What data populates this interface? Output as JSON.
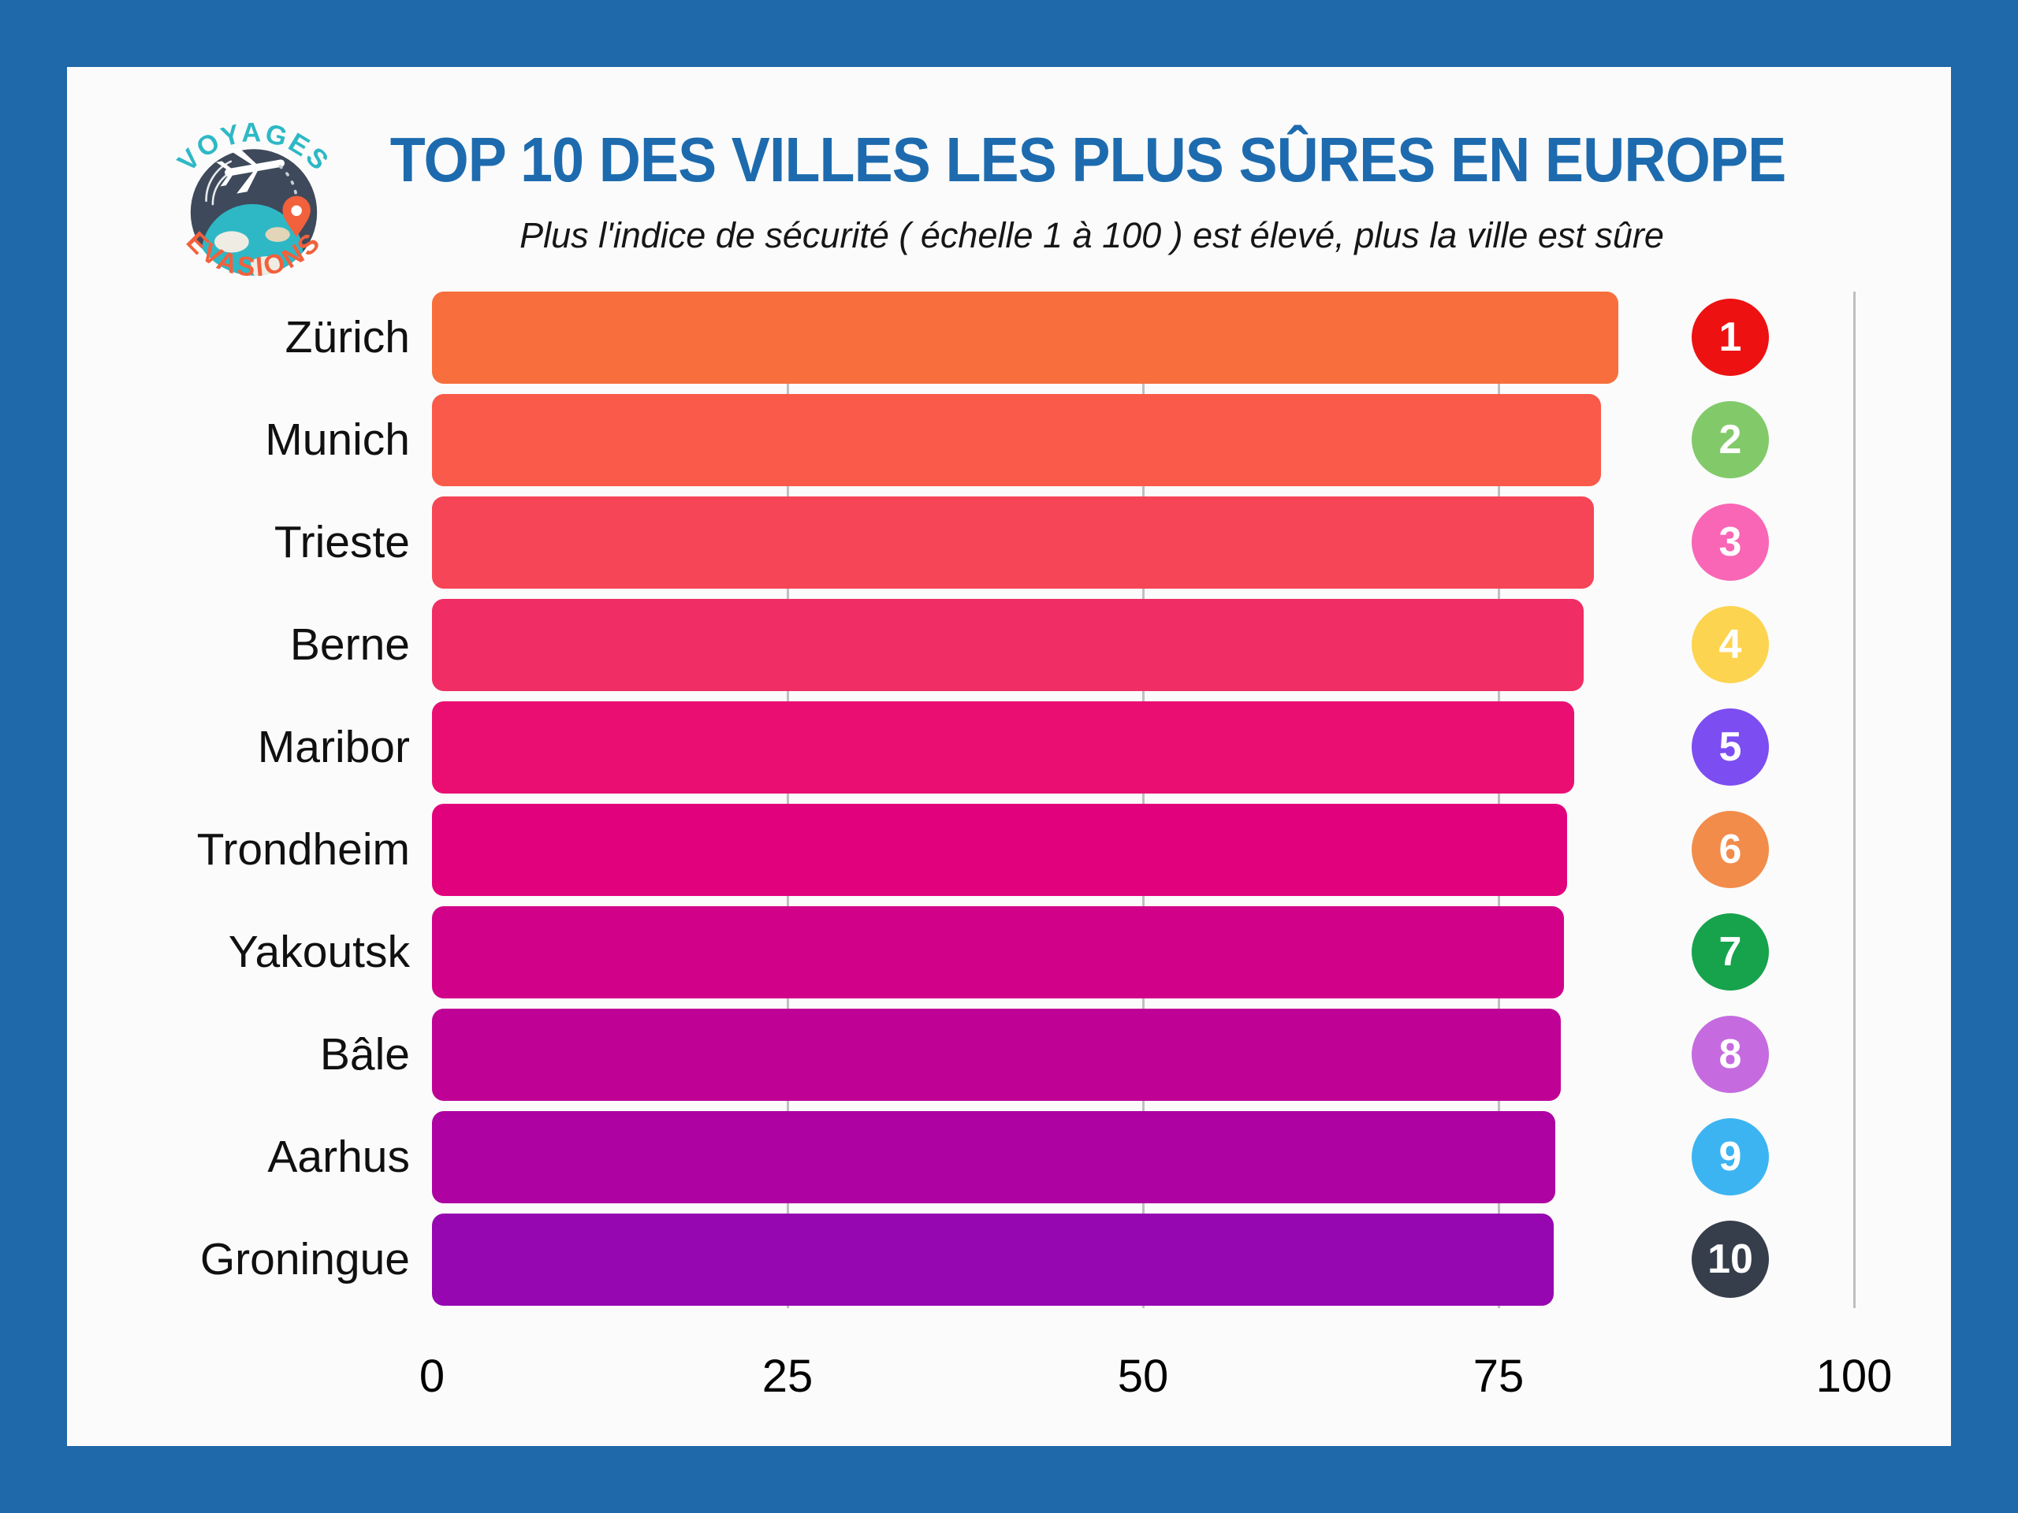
{
  "colors": {
    "frame": "#1F68A9",
    "card_background": "#FBFBFB",
    "title_color": "#1D6BAE",
    "gridline_color": "#BFBFC3"
  },
  "logo": {
    "top_text": "VOYAGES",
    "bottom_text": "EVASIONS",
    "disc_color": "#3E4A5B",
    "globe_color": "#2EB8C5",
    "land_color": "#EFECE4",
    "accent_color": "#F2603C"
  },
  "chart_data": {
    "type": "bar",
    "orientation": "horizontal",
    "title": "TOP 10 DES VILLES LES PLUS SÛRES EN EUROPE",
    "subtitle": "Plus l'indice de sécurité ( échelle 1 à 100 ) est élevé, plus la ville est sûre",
    "categories": [
      "Zürich",
      "Munich",
      "Trieste",
      "Berne",
      "Maribor",
      "Trondheim",
      "Yakoutsk",
      "Bâle",
      "Aarhus",
      "Groningue"
    ],
    "values": [
      83.4,
      82.2,
      81.7,
      81.0,
      80.3,
      79.8,
      79.6,
      79.4,
      79.0,
      78.9
    ],
    "bar_colors": [
      "#F86F3D",
      "#FA5A49",
      "#F54556",
      "#F02D64",
      "#EA0E73",
      "#E2017D",
      "#D10189",
      "#BF0196",
      "#AE02A2",
      "#9606B1"
    ],
    "ranks": [
      "1",
      "2",
      "3",
      "4",
      "5",
      "6",
      "7",
      "8",
      "9",
      "10"
    ],
    "rank_badge_colors": [
      "#EE1111",
      "#82C96A",
      "#F966B5",
      "#FCD44F",
      "#7C4DF1",
      "#F28C4B",
      "#17A24C",
      "#C56BDF",
      "#3CB4F2",
      "#363E4C"
    ],
    "xlabel": "",
    "ylabel": "",
    "xlim": [
      0,
      100
    ],
    "xticks": [
      0,
      25,
      50,
      75,
      100
    ],
    "grid": "vertical-at-ticks",
    "legend": "none"
  }
}
